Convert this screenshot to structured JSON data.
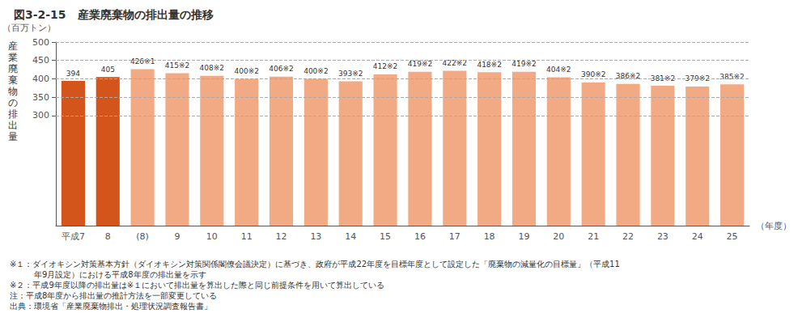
{
  "chart_data": {
    "type": "bar",
    "title": "図3-2-15　産業廃棄物の排出量の推移",
    "ylabel": "産業廃棄物の排出量",
    "unit_label": "（百万トン）",
    "xlabel": "（年度）",
    "categories": [
      "平成7",
      "8",
      "(8)",
      "9",
      "10",
      "11",
      "12",
      "13",
      "14",
      "15",
      "16",
      "17",
      "18",
      "19",
      "20",
      "21",
      "22",
      "23",
      "24",
      "25"
    ],
    "values": [
      394,
      405,
      426,
      415,
      408,
      400,
      406,
      400,
      393,
      412,
      419,
      422,
      418,
      419,
      404,
      390,
      386,
      381,
      379,
      385
    ],
    "value_labels": [
      "394",
      "405",
      "426※1",
      "415※2",
      "408※2",
      "400※2",
      "406※2",
      "400※2",
      "393※2",
      "412※2",
      "419※2",
      "422※2",
      "418※2",
      "419※2",
      "404※2",
      "390※2",
      "386※2",
      "381※2",
      "379※2",
      "385※2"
    ],
    "colors": [
      "#d4551c",
      "#d4551c",
      "#f2aa84",
      "#f2aa84",
      "#f2aa84",
      "#f2aa84",
      "#f2aa84",
      "#f2aa84",
      "#f2aa84",
      "#f2aa84",
      "#f2aa84",
      "#f2aa84",
      "#f2aa84",
      "#f2aa84",
      "#f2aa84",
      "#f2aa84",
      "#f2aa84",
      "#f2aa84",
      "#f2aa84",
      "#f2aa84"
    ],
    "data_labels": true,
    "ylim": [
      0,
      500
    ],
    "yticks": [
      300,
      350,
      400,
      450,
      500
    ],
    "grid": true,
    "annotations": [
      "※１：ダイオキシン対策基本方針（ダイオキシン対策関係閣僚会議決定）に基づき、政府が平成22年度を目標年度として設定した「廃棄物の減量化の目標量」（平成11",
      "　　　年9月設定）における平成8年度の排出量を示す",
      "※２：平成9年度以降の排出量は※１において排出量を算出した際と同じ前提条件を用いて算出している",
      "注：平成8年度から排出量の推計方法を一部変更している",
      "出典：環境省「産業廃棄物排出・処理状況調査報告書」"
    ]
  }
}
